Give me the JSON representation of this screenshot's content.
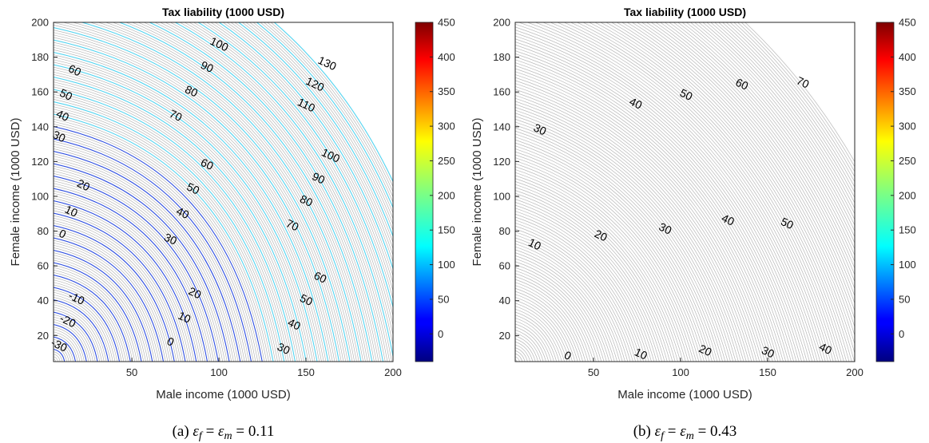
{
  "chart_data": [
    {
      "type": "contour",
      "panel": "a",
      "title": "Tax liability (1000 USD)",
      "xlabel": "Male income (1000 USD)",
      "ylabel": "Female income (1000 USD)",
      "xlim": [
        5,
        200
      ],
      "ylim": [
        5,
        200
      ],
      "xticks": [
        50,
        100,
        150,
        200
      ],
      "yticks": [
        20,
        40,
        60,
        80,
        100,
        120,
        140,
        160,
        180,
        200
      ],
      "colorbar": {
        "min": -40,
        "max": 450,
        "ticks": [
          0,
          50,
          100,
          150,
          200,
          250,
          300,
          350,
          400,
          450
        ]
      },
      "caption": "(a) ε_f = ε_m = 0.11",
      "contour_labels": [
        {
          "level": "100",
          "x": 100,
          "y": 187,
          "angle": 25
        },
        {
          "level": "90",
          "x": 93,
          "y": 174,
          "angle": 25
        },
        {
          "level": "80",
          "x": 84,
          "y": 160,
          "angle": 25
        },
        {
          "level": "70",
          "x": 75,
          "y": 146,
          "angle": 25
        },
        {
          "level": "60",
          "x": 17,
          "y": 172,
          "angle": 25
        },
        {
          "level": "50",
          "x": 12,
          "y": 158,
          "angle": 25
        },
        {
          "level": "40",
          "x": 10,
          "y": 146,
          "angle": 25
        },
        {
          "level": "30",
          "x": 8,
          "y": 134,
          "angle": 25
        },
        {
          "level": "130",
          "x": 162,
          "y": 176,
          "angle": 25
        },
        {
          "level": "120",
          "x": 155,
          "y": 164,
          "angle": 25
        },
        {
          "level": "110",
          "x": 150,
          "y": 152,
          "angle": 25
        },
        {
          "level": "100",
          "x": 164,
          "y": 123,
          "angle": 25
        },
        {
          "level": "90",
          "x": 157,
          "y": 110,
          "angle": 25
        },
        {
          "level": "80",
          "x": 150,
          "y": 97,
          "angle": 25
        },
        {
          "level": "70",
          "x": 142,
          "y": 83,
          "angle": 25
        },
        {
          "level": "60",
          "x": 93,
          "y": 118,
          "angle": 25
        },
        {
          "level": "50",
          "x": 85,
          "y": 104,
          "angle": 25
        },
        {
          "level": "40",
          "x": 79,
          "y": 90,
          "angle": 25
        },
        {
          "level": "30",
          "x": 72,
          "y": 75,
          "angle": 25
        },
        {
          "level": "20",
          "x": 22,
          "y": 106,
          "angle": 25
        },
        {
          "level": "10",
          "x": 15,
          "y": 91,
          "angle": 25
        },
        {
          "level": "0",
          "x": 10,
          "y": 78,
          "angle": 25
        },
        {
          "level": "-10",
          "x": 18,
          "y": 41,
          "angle": 25
        },
        {
          "level": "-20",
          "x": 13,
          "y": 28,
          "angle": 25
        },
        {
          "level": "-30",
          "x": 8,
          "y": 14,
          "angle": 25
        },
        {
          "level": "60",
          "x": 158,
          "y": 53,
          "angle": 25
        },
        {
          "level": "50",
          "x": 150,
          "y": 40,
          "angle": 25
        },
        {
          "level": "40",
          "x": 143,
          "y": 26,
          "angle": 25
        },
        {
          "level": "30",
          "x": 137,
          "y": 12,
          "angle": 25
        },
        {
          "level": "20",
          "x": 86,
          "y": 44,
          "angle": 25
        },
        {
          "level": "10",
          "x": 80,
          "y": 30,
          "angle": 25
        },
        {
          "level": "0",
          "x": 72,
          "y": 16,
          "angle": 25
        }
      ]
    },
    {
      "type": "contour",
      "panel": "b",
      "title": "Tax liability (1000 USD)",
      "xlabel": "Male income (1000 USD)",
      "ylabel": "Female income (1000 USD)",
      "xlim": [
        5,
        200
      ],
      "ylim": [
        5,
        200
      ],
      "xticks": [
        50,
        100,
        150,
        200
      ],
      "yticks": [
        20,
        40,
        60,
        80,
        100,
        120,
        140,
        160,
        180,
        200
      ],
      "colorbar": {
        "min": -40,
        "max": 450,
        "ticks": [
          0,
          50,
          100,
          150,
          200,
          250,
          300,
          350,
          400,
          450
        ]
      },
      "caption": "(b) ε_f = ε_m = 0.43",
      "contour_labels": [
        {
          "level": "30",
          "x": 19,
          "y": 138,
          "angle": 25
        },
        {
          "level": "40",
          "x": 74,
          "y": 153,
          "angle": 25
        },
        {
          "level": "50",
          "x": 103,
          "y": 158,
          "angle": 25
        },
        {
          "level": "60",
          "x": 135,
          "y": 164,
          "angle": 25
        },
        {
          "level": "70",
          "x": 170,
          "y": 165,
          "angle": 25
        },
        {
          "level": "20",
          "x": 54,
          "y": 77,
          "angle": 25
        },
        {
          "level": "30",
          "x": 91,
          "y": 81,
          "angle": 25
        },
        {
          "level": "40",
          "x": 127,
          "y": 86,
          "angle": 25
        },
        {
          "level": "50",
          "x": 161,
          "y": 84,
          "angle": 25
        },
        {
          "level": "10",
          "x": 16,
          "y": 72,
          "angle": 25
        },
        {
          "level": "0",
          "x": 35,
          "y": 8,
          "angle": 25
        },
        {
          "level": "10",
          "x": 77,
          "y": 9,
          "angle": 25
        },
        {
          "level": "20",
          "x": 114,
          "y": 11,
          "angle": 25
        },
        {
          "level": "30",
          "x": 150,
          "y": 10,
          "angle": 25
        },
        {
          "level": "40",
          "x": 183,
          "y": 12,
          "angle": 25
        }
      ]
    }
  ]
}
